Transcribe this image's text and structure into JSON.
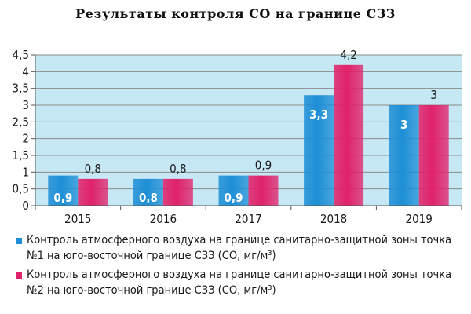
{
  "title": "Результаты контроля CO на границе СЗЗ",
  "chart_data": {
    "type": "bar",
    "title": "Результаты контроля CO на границе СЗЗ",
    "xlabel": "",
    "ylabel": "",
    "ylim": [
      0,
      4.5
    ],
    "y_ticks": [
      "0",
      "0,5",
      "1",
      "1,5",
      "2",
      "2,5",
      "3",
      "3,5",
      "4",
      "4,5"
    ],
    "y_tick_values": [
      0,
      0.5,
      1,
      1.5,
      2,
      2.5,
      3,
      3.5,
      4,
      4.5
    ],
    "grid": true,
    "legend_position": "bottom",
    "categories": [
      "2015",
      "2016",
      "2017",
      "2018",
      "2019"
    ],
    "series": [
      {
        "name": "Контроль атмосферного воздуха на границе санитарно-защитной зоны точка №1 на юго-восточной границе СЗЗ (СО, мг/м³)",
        "values": [
          0.9,
          0.8,
          0.9,
          3.3,
          3
        ],
        "labels": [
          "0,9",
          "0,8",
          "0,9",
          "3,3",
          "3"
        ],
        "color": "#1e8fd6",
        "label_position": "inside"
      },
      {
        "name": "Контроль атмосферного воздуха на границе санитарно-защитной зоны точка №2 на юго-восточной границе СЗЗ (СО, мг/м³)",
        "values": [
          0.8,
          0.8,
          0.9,
          4.2,
          3
        ],
        "labels": [
          "0,8",
          "0,8",
          "0,9",
          "4,2",
          "3"
        ],
        "color": "#e0226a",
        "label_position": "above"
      }
    ],
    "plot_background": "#c6e8f5",
    "grid_color": "#8a8a8a"
  }
}
